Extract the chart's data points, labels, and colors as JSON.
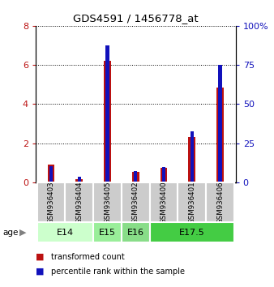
{
  "title": "GDS4591 / 1456778_at",
  "samples": [
    "GSM936403",
    "GSM936404",
    "GSM936405",
    "GSM936402",
    "GSM936400",
    "GSM936401",
    "GSM936406"
  ],
  "transformed_count": [
    0.9,
    0.15,
    6.2,
    0.55,
    0.75,
    2.3,
    4.85
  ],
  "percentile_rank": [
    10.0,
    3.5,
    87.5,
    7.0,
    9.5,
    32.5,
    75.0
  ],
  "age_groups": [
    {
      "label": "E14",
      "samples": [
        0,
        1
      ],
      "color": "#ccffcc"
    },
    {
      "label": "E15",
      "samples": [
        2
      ],
      "color": "#99ee99"
    },
    {
      "label": "E16",
      "samples": [
        3
      ],
      "color": "#88dd88"
    },
    {
      "label": "E17.5",
      "samples": [
        4,
        5,
        6
      ],
      "color": "#44cc44"
    }
  ],
  "left_ylim": [
    0,
    8
  ],
  "right_ylim": [
    0,
    100
  ],
  "left_yticks": [
    0,
    2,
    4,
    6,
    8
  ],
  "right_yticks": [
    0,
    25,
    50,
    75,
    100
  ],
  "left_yticklabels": [
    "0",
    "2",
    "4",
    "6",
    "8"
  ],
  "right_yticklabels": [
    "0",
    "25",
    "50",
    "75",
    "100%"
  ],
  "bar_color_red": "#bb1111",
  "bar_color_blue": "#1111bb",
  "bg_color": "#cccccc",
  "red_bar_width": 0.25,
  "blue_bar_width": 0.12
}
